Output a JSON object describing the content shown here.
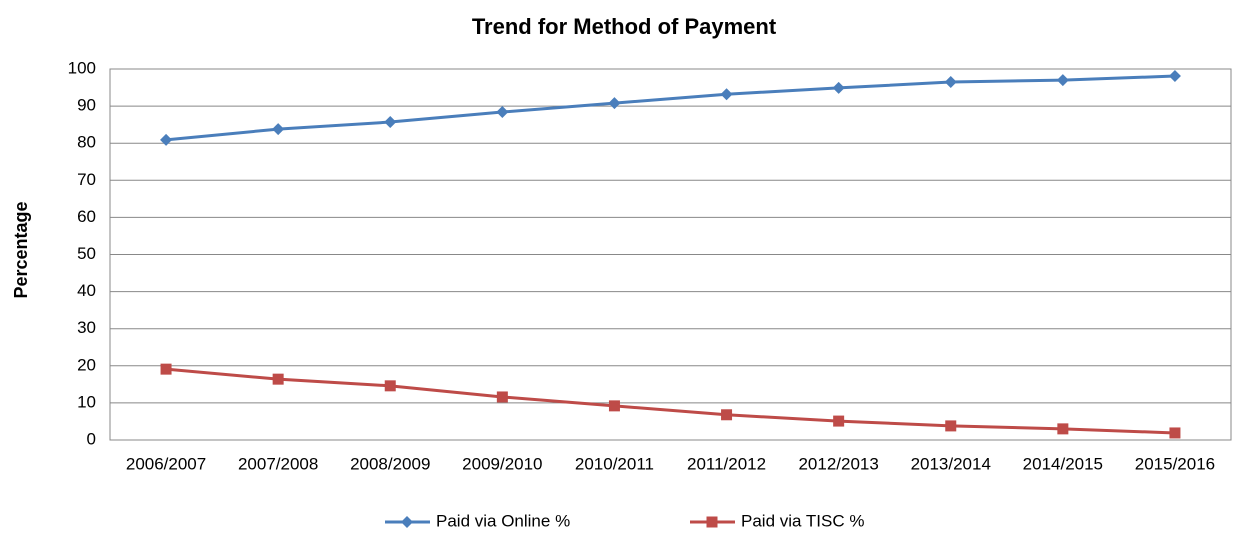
{
  "chart_data": {
    "type": "line",
    "title": "Trend for Method of Payment",
    "y_label": "Percentage",
    "categories": [
      "2006/2007",
      "2007/2008",
      "2008/2009",
      "2009/2010",
      "2010/2011",
      "2011/2012",
      "2012/2013",
      "2013/2014",
      "2014/2015",
      "2015/2016"
    ],
    "series": [
      {
        "name": "Paid via Online %",
        "color": "#4a7ebb",
        "marker": "diamond",
        "values": [
          80.9,
          83.8,
          85.7,
          88.4,
          90.8,
          93.2,
          94.9,
          96.5,
          97,
          98.1
        ]
      },
      {
        "name": "Paid via TISC %",
        "color": "#be4b48",
        "marker": "square",
        "values": [
          19.1,
          16.4,
          14.6,
          11.6,
          9.2,
          6.8,
          5.1,
          3.8,
          3,
          1.9
        ]
      }
    ],
    "ylim": [
      0,
      100
    ],
    "yticks": [
      0,
      10,
      20,
      30,
      40,
      50,
      60,
      70,
      80,
      90,
      100
    ],
    "grid": true,
    "legend": "bottom"
  }
}
